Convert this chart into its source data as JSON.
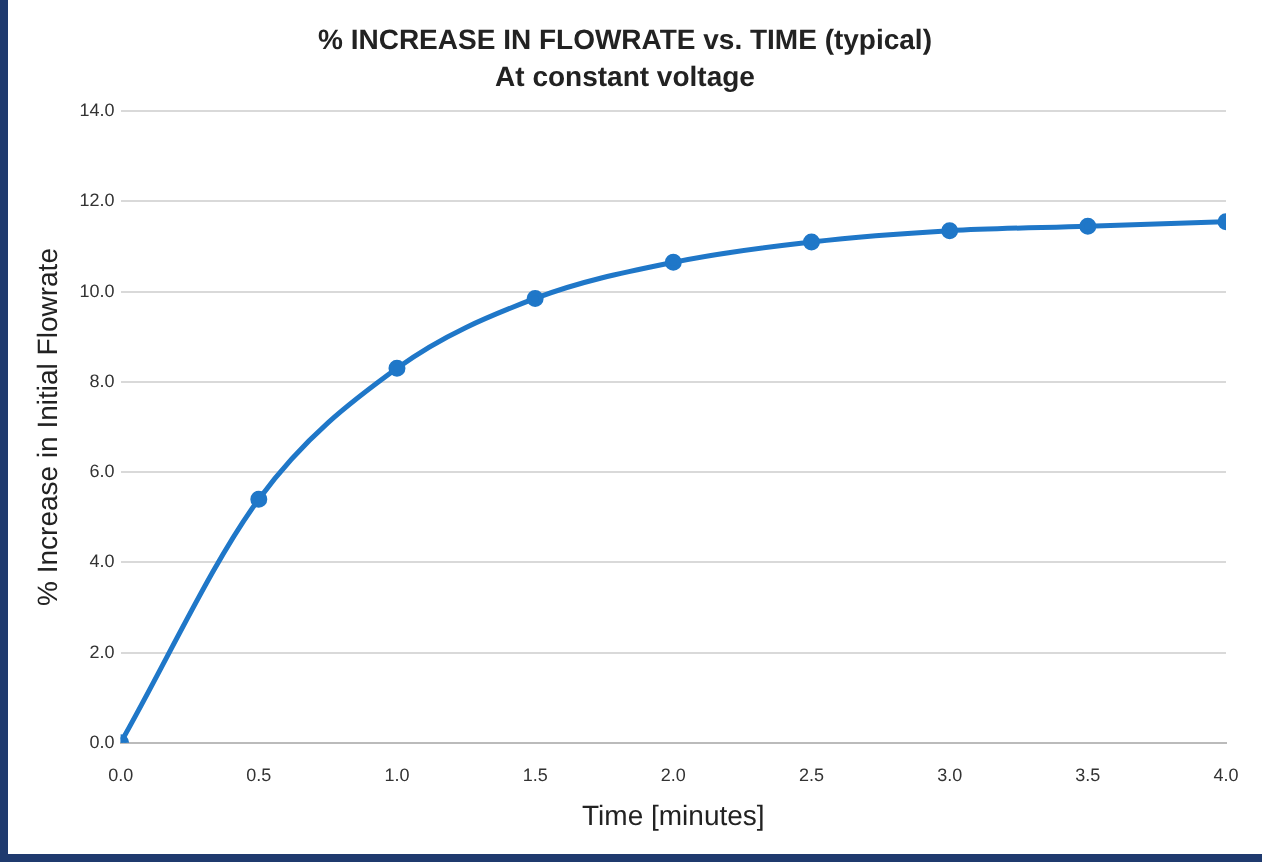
{
  "chart_data": {
    "type": "line",
    "title": "% INCREASE IN FLOWRATE vs. TIME (typical)",
    "subtitle": "At constant voltage",
    "xlabel": "Time [minutes]",
    "ylabel": "% Increase in Initial Flowrate",
    "x": [
      0,
      0.5,
      1.0,
      1.5,
      2.0,
      2.5,
      3.0,
      3.5,
      4.0
    ],
    "series": [
      {
        "color": "#1f77c8",
        "values": [
          0,
          5.4,
          8.3,
          9.85,
          10.65,
          11.1,
          11.35,
          11.45,
          11.55
        ]
      }
    ],
    "xlim": [
      0,
      4
    ],
    "xticks": [
      {
        "value": 0,
        "label": "0.0"
      },
      {
        "value": 0.5,
        "label": "0.5"
      },
      {
        "value": 1,
        "label": "1.0"
      },
      {
        "value": 1.5,
        "label": "1.5"
      },
      {
        "value": 2,
        "label": "2.0"
      },
      {
        "value": 2.5,
        "label": "2.5"
      },
      {
        "value": 3,
        "label": "3.0"
      },
      {
        "value": 3.5,
        "label": "3.5"
      },
      {
        "value": 4,
        "label": "4.0"
      }
    ],
    "ylim": [
      0,
      14
    ],
    "yticks": [
      {
        "value": 0,
        "label": "0.0"
      },
      {
        "value": 2,
        "label": "2.0"
      },
      {
        "value": 4,
        "label": "4.0"
      },
      {
        "value": 6,
        "label": "6.0"
      },
      {
        "value": 8,
        "label": "8.0"
      },
      {
        "value": 10,
        "label": "10.0"
      },
      {
        "value": 12,
        "label": "12.0"
      },
      {
        "value": 14,
        "label": "14.0"
      }
    ],
    "grid": "y",
    "legend": false,
    "marker": "circle",
    "line_style": "solid"
  }
}
